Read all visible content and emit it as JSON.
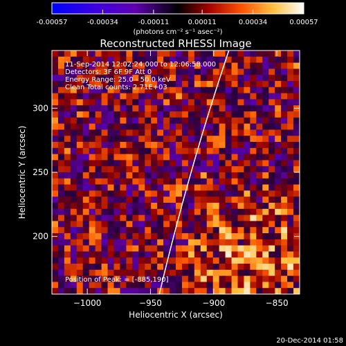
{
  "chart_data": {
    "type": "heatmap",
    "title": "Reconstructed RHESSI Image",
    "xlabel": "Heliocentric X (arcsec)",
    "ylabel": "Heliocentric Y (arcsec)",
    "xlim": [
      -1028,
      -832
    ],
    "ylim": [
      155,
      345
    ],
    "xticks": [
      -1000,
      -950,
      -900,
      -850
    ],
    "yticks": [
      200,
      250,
      300
    ],
    "colorbar": {
      "range": [
        -0.00057,
        0.00057
      ],
      "ticks": [
        "-0.00057",
        "-0.00034",
        "-0.00011",
        "0.00011",
        "0.00034",
        "0.00057"
      ],
      "tick_values": [
        -0.00057,
        -0.00034,
        -0.00011,
        0.00011,
        0.00034,
        0.00057
      ],
      "label": "(photons cm⁻² s⁻¹ asec⁻²)",
      "colors": [
        "#0000ff",
        "#5a00c8",
        "#000000",
        "#a00000",
        "#ff6000",
        "#ffc040",
        "#ffffff"
      ]
    },
    "annotations": [
      "11-Sep-2014 12:02:24.000 to 12:06:58.000",
      "Detectors: 3F 6F 9F Att 0",
      "Energy Range: 25.0 - 50.0 keV",
      "Clean     Total counts: 2.71E+03",
      "Position of Peak: = [-885,190]"
    ],
    "peak": [
      -885,
      190
    ],
    "grid": false,
    "limb_curve": {
      "points": [
        [
          -943,
          155
        ],
        [
          -925,
          230
        ],
        [
          -905,
          295
        ],
        [
          -888,
          345
        ]
      ],
      "color": "#ffffff"
    }
  },
  "footer": {
    "timestamp": "20-Dec-2014 01:58"
  }
}
